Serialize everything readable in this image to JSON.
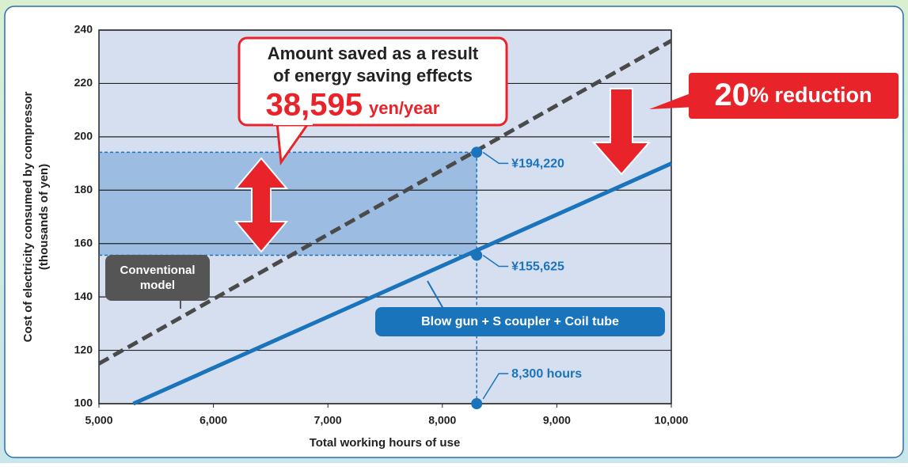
{
  "chart_data": {
    "type": "line",
    "xlabel": "Total working hours of use",
    "ylabel": [
      "Cost of electricity consumed by compressor",
      "(thousands of yen)"
    ],
    "xlim": [
      5000,
      10000
    ],
    "ylim": [
      100,
      240
    ],
    "xticks": [
      {
        "value": 5000,
        "label": "5,000"
      },
      {
        "value": 6000,
        "label": "6,000"
      },
      {
        "value": 7000,
        "label": "7,000"
      },
      {
        "value": 8000,
        "label": "8,000"
      },
      {
        "value": 9000,
        "label": "9,000"
      },
      {
        "value": 10000,
        "label": "10,000"
      }
    ],
    "yticks": [
      100,
      120,
      140,
      160,
      180,
      200,
      220,
      240
    ],
    "grid": true,
    "series": [
      {
        "name": "Conventional model",
        "color": "#4a4a4a",
        "dashed": true,
        "x": [
          5000,
          10000
        ],
        "values": [
          115,
          236
        ]
      },
      {
        "name": "Blow gun + S coupler + Coil tube",
        "color": "#1a74bb",
        "dashed": false,
        "x": [
          5300,
          10000
        ],
        "values": [
          100,
          190
        ]
      }
    ],
    "markers": {
      "x": 8300,
      "x_label": "8,300 hours",
      "values": [
        194.22,
        155.625
      ],
      "value_labels": [
        "¥194,220",
        "¥155,625"
      ],
      "color": "#1a74bb"
    },
    "callout": {
      "lines": [
        "Amount saved as a result",
        "of energy saving effects"
      ],
      "amount": "38,595",
      "unit": "yen/year"
    },
    "reduction": {
      "number": "20",
      "text": "% reduction"
    }
  }
}
